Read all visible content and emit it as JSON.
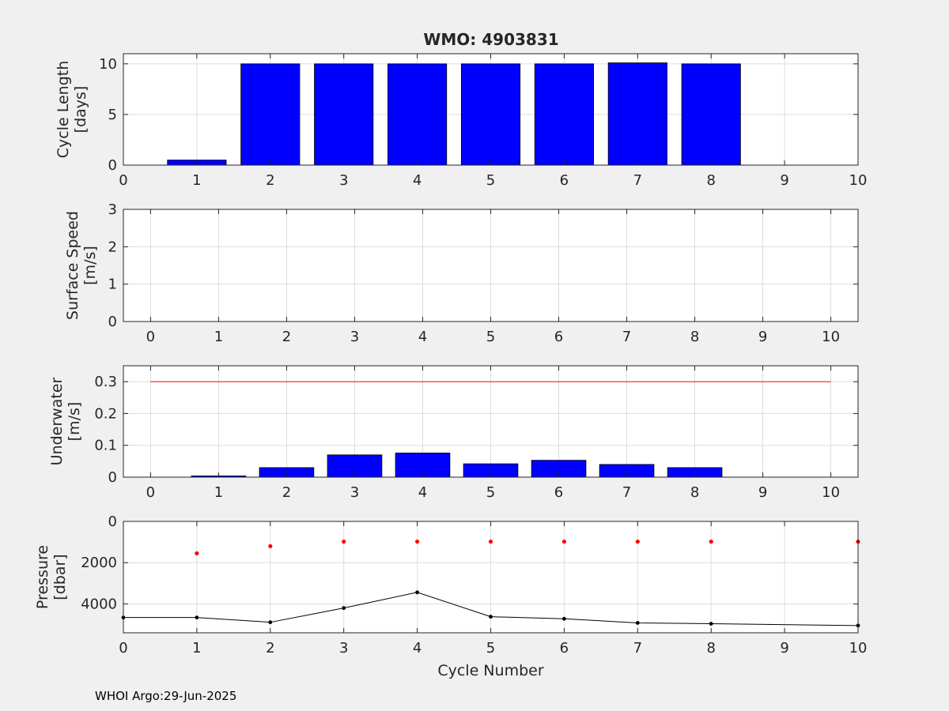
{
  "title": "WMO: 4903831",
  "footer": "WHOI Argo:29-Jun-2025",
  "chart_data": [
    {
      "type": "bar",
      "ylabel": [
        "Cycle Length",
        "[days]"
      ],
      "xlim": [
        0,
        10
      ],
      "ylim": [
        0,
        11
      ],
      "xticks": [
        0,
        1,
        2,
        3,
        4,
        5,
        6,
        7,
        8,
        9,
        10
      ],
      "yticks": [
        0,
        5,
        10
      ],
      "grid": true,
      "colors": {
        "bar": "#0000ff"
      },
      "categories": [
        1,
        2,
        3,
        4,
        5,
        6,
        7,
        8
      ],
      "values": [
        0.5,
        10.0,
        10.0,
        10.0,
        10.0,
        10.0,
        10.1,
        10.0
      ]
    },
    {
      "type": "bar",
      "ylabel": [
        "Surface Speed",
        "[m/s]"
      ],
      "xlim": [
        -0.4,
        10.4
      ],
      "ylim": [
        0,
        3
      ],
      "xticks": [
        0,
        1,
        2,
        3,
        4,
        5,
        6,
        7,
        8,
        9,
        10
      ],
      "yticks": [
        0,
        1,
        2,
        3
      ],
      "grid": true,
      "categories": [],
      "values": []
    },
    {
      "type": "bar",
      "ylabel": [
        "Underwater",
        "[m/s]"
      ],
      "xlim": [
        -0.4,
        10.4
      ],
      "ylim": [
        0,
        0.35
      ],
      "xticks": [
        0,
        1,
        2,
        3,
        4,
        5,
        6,
        7,
        8,
        9,
        10
      ],
      "yticks": [
        0,
        0.1,
        0.2,
        0.3
      ],
      "grid": true,
      "colors": {
        "bar": "#0000ff",
        "reference_line": "#ff0000"
      },
      "categories": [
        1,
        2,
        3,
        4,
        5,
        6,
        7,
        8
      ],
      "values": [
        0.004,
        0.03,
        0.07,
        0.076,
        0.042,
        0.053,
        0.04,
        0.03
      ],
      "reference_line": {
        "y": 0.3,
        "x": [
          0,
          10
        ]
      }
    },
    {
      "type": "line",
      "ylabel": [
        "Pressure",
        "[dbar]"
      ],
      "xlabel": "Cycle Number",
      "xlim": [
        0,
        10
      ],
      "ylim": [
        0,
        5400
      ],
      "y_reversed": true,
      "xticks": [
        0,
        1,
        2,
        3,
        4,
        5,
        6,
        7,
        8,
        9,
        10
      ],
      "yticks": [
        0,
        2000,
        4000
      ],
      "grid": true,
      "colors": {
        "line": "#000000",
        "points": "#ff0000"
      },
      "series": [
        {
          "style": "black line with markers",
          "x": [
            0,
            1,
            2,
            3,
            4,
            5,
            6,
            7,
            8,
            10
          ],
          "y": [
            4660,
            4660,
            4890,
            4200,
            3440,
            4620,
            4720,
            4920,
            4960,
            5050
          ]
        },
        {
          "style": "red markers",
          "x": [
            1,
            2,
            3,
            4,
            5,
            6,
            7,
            8,
            10
          ],
          "y": [
            1550,
            1200,
            980,
            980,
            980,
            980,
            980,
            980,
            980
          ]
        }
      ]
    }
  ]
}
